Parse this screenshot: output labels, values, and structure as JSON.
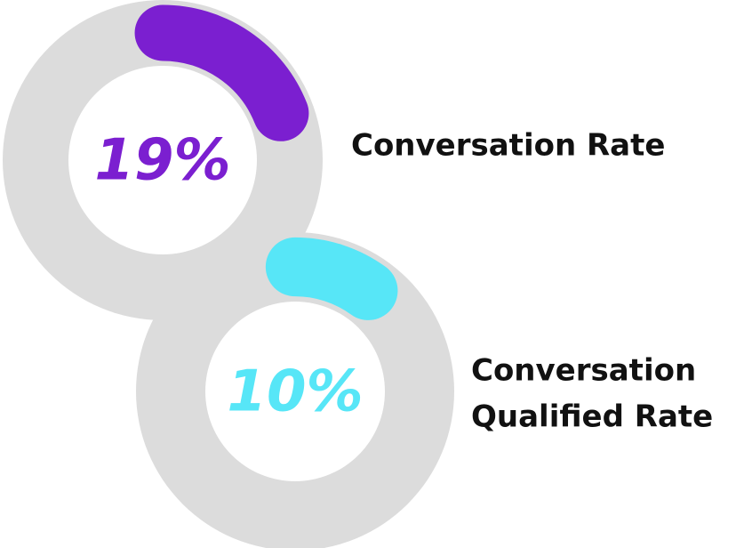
{
  "chart_data": [
    {
      "type": "donut",
      "values": [
        19
      ],
      "value_labels": [
        "19%"
      ],
      "color": "#7b1fd0",
      "track_color": "#dcdcdc",
      "label": [
        "Conversation Rate"
      ]
    },
    {
      "type": "donut",
      "values": [
        10
      ],
      "value_labels": [
        "10%"
      ],
      "color": "#57e6f7",
      "track_color": "#dcdcdc",
      "label": [
        "Conversation",
        "Qualified Rate"
      ]
    }
  ]
}
